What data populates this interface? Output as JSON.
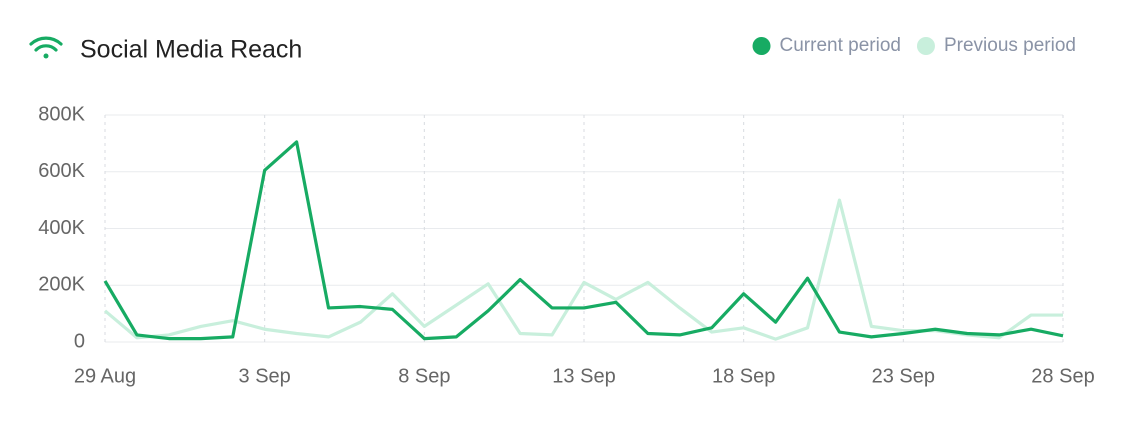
{
  "chart_data": {
    "type": "line",
    "title": "Social Media Reach",
    "categories": [
      "29 Aug",
      null,
      null,
      null,
      null,
      "3 Sep",
      null,
      null,
      null,
      null,
      "8 Sep",
      null,
      null,
      null,
      null,
      "13 Sep",
      null,
      null,
      null,
      null,
      "18 Sep",
      null,
      null,
      null,
      null,
      "23 Sep",
      null,
      null,
      null,
      null,
      "28 Sep"
    ],
    "series": [
      {
        "name": "Current period",
        "color": "#17ab63",
        "values": [
          215000,
          25000,
          12000,
          12000,
          18000,
          605000,
          705000,
          120000,
          125000,
          115000,
          12000,
          18000,
          110000,
          220000,
          120000,
          120000,
          140000,
          30000,
          25000,
          50000,
          170000,
          70000,
          225000,
          35000,
          18000,
          30000,
          45000,
          30000,
          25000,
          45000,
          22000
        ]
      },
      {
        "name": "Previous period",
        "color": "#c8efdc",
        "values": [
          110000,
          15000,
          25000,
          55000,
          75000,
          45000,
          30000,
          18000,
          70000,
          170000,
          55000,
          130000,
          205000,
          30000,
          25000,
          210000,
          150000,
          210000,
          120000,
          35000,
          50000,
          10000,
          50000,
          500000,
          55000,
          40000,
          40000,
          25000,
          15000,
          95000,
          95000
        ]
      }
    ],
    "ylim": [
      0,
      800000
    ],
    "yticks": [
      0,
      {
        "value": 200000,
        "label": "200K"
      },
      {
        "value": 400000,
        "label": "400K"
      },
      {
        "value": 600000,
        "label": "600K"
      },
      {
        "value": 800000,
        "label": "800K"
      }
    ],
    "grid": true,
    "legend": "top-right"
  }
}
